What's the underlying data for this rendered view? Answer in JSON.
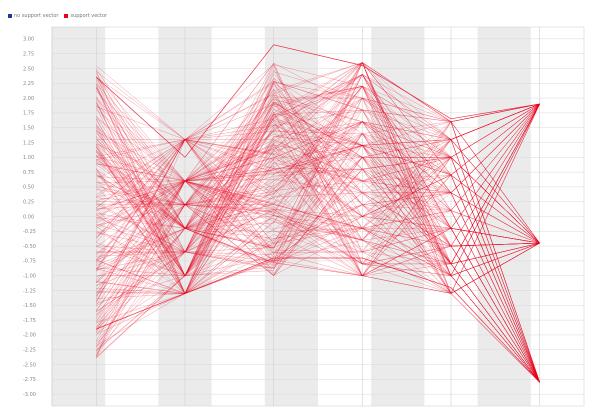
{
  "chart_data": {
    "type": "line",
    "title": "",
    "xlabel": "",
    "ylabel": "",
    "grid": true,
    "legend_position": "top-left",
    "legend": [
      {
        "name": "no support vector",
        "color": "#1f3a93"
      },
      {
        "name": "support vector",
        "color": "#e8001c"
      }
    ],
    "ylim": [
      -3.2,
      3.2
    ],
    "y_ticks": [
      "3.00",
      "2.75",
      "2.50",
      "2.25",
      "2.00",
      "1.75",
      "1.50",
      "1.25",
      "1.00",
      "0.75",
      "0.50",
      "0.25",
      "0.00",
      "-0.25",
      "-0.50",
      "-0.75",
      "-1.00",
      "-1.25",
      "-1.50",
      "-1.75",
      "-2.00",
      "-2.25",
      "-2.50",
      "-2.75",
      "-3.00"
    ],
    "x": [
      1,
      2,
      3,
      4,
      5,
      6
    ],
    "axis_ranges": [
      [
        -2.4,
        2.58
      ],
      [
        -1.6,
        1.3
      ],
      [
        -1.0,
        2.6
      ],
      [
        -1.0,
        2.4
      ],
      [
        -1.3,
        1.6
      ],
      [
        -2.8,
        1.9
      ]
    ],
    "axis_levels": [
      null,
      [
        1.3,
        0.6,
        0.2,
        -0.2,
        -0.6,
        -1.0,
        -1.3
      ],
      null,
      [
        2.6,
        2.4,
        2.2,
        2.0,
        1.8,
        1.6,
        1.4,
        1.2,
        1.0,
        0.8,
        0.6,
        0.4,
        0.2,
        0.0,
        -0.2,
        -0.4,
        -0.6,
        -0.8,
        -1.0
      ],
      [
        1.6,
        1.3,
        1.0,
        0.7,
        0.4,
        0.1,
        -0.2,
        -0.5,
        -0.8,
        -1.0,
        -1.3
      ],
      [
        1.9,
        -0.45,
        -2.8
      ]
    ],
    "extreme_lines": [
      [
        -1.9,
        -1.3,
        -0.7,
        -0.7,
        -1.2,
        -2.8
      ],
      [
        2.35,
        1.0,
        2.9,
        2.55,
        1.65,
        1.9
      ]
    ],
    "series": [
      {
        "name": "support vector",
        "color": "#e8001c",
        "line_count": 220
      }
    ]
  }
}
